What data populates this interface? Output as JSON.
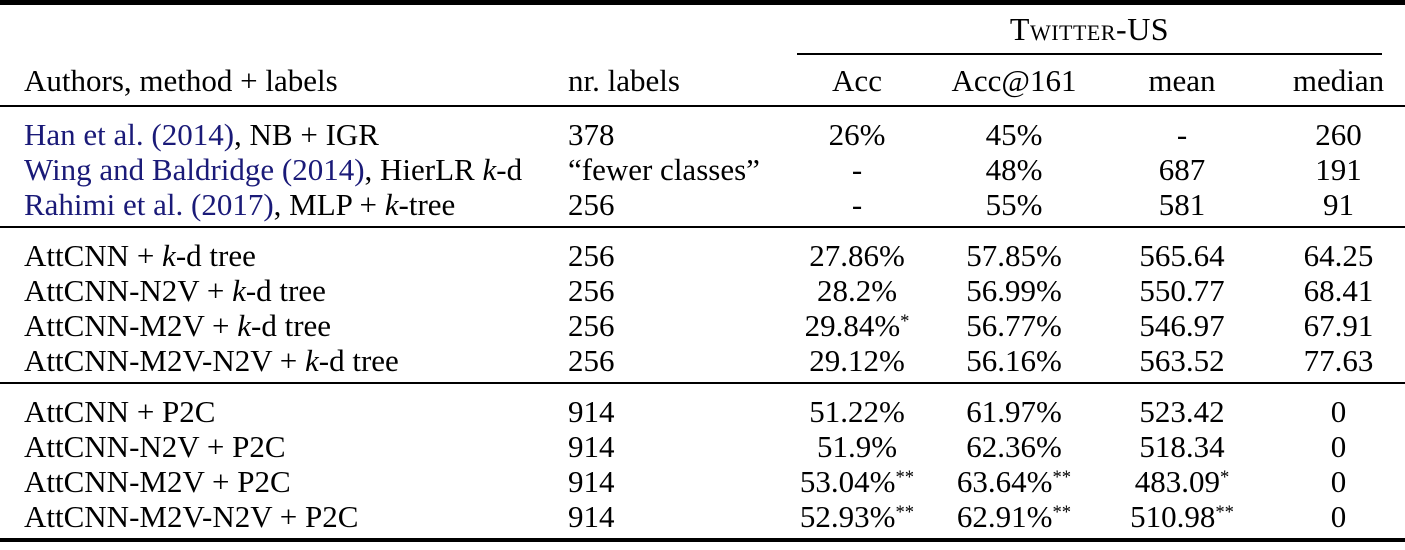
{
  "colors": {
    "citation_link": "#1a1a78",
    "text": "#000000",
    "background": "#ffffff"
  },
  "table": {
    "group_header": {
      "label": "Twitter-US"
    },
    "columns": {
      "method": "Authors, method + labels",
      "nr_labels": "nr. labels",
      "acc": "Acc",
      "acc161": "Acc@161",
      "mean": "mean",
      "median": "median"
    },
    "sections": [
      {
        "rows": [
          {
            "label": {
              "cite": "Han et al. (2014)",
              "pre": ", NB + IGR"
            },
            "nr_labels": "378",
            "acc": {
              "v": "26%"
            },
            "acc161": {
              "v": "45%"
            },
            "mean": {
              "v": "-"
            },
            "median": {
              "v": "260"
            }
          },
          {
            "label": {
              "cite": "Wing and Baldridge (2014)",
              "pre": ", HierLR ",
              "it": "k",
              "post": "-d"
            },
            "nr_labels": "“fewer classes”",
            "acc": {
              "v": "-"
            },
            "acc161": {
              "v": "48%"
            },
            "mean": {
              "v": "687"
            },
            "median": {
              "v": "191"
            }
          },
          {
            "label": {
              "cite": "Rahimi et al. (2017)",
              "pre": ", MLP + ",
              "it": "k",
              "post": "-tree"
            },
            "nr_labels": "256",
            "acc": {
              "v": "-"
            },
            "acc161": {
              "v": "55%"
            },
            "mean": {
              "v": "581"
            },
            "median": {
              "v": "91"
            }
          }
        ]
      },
      {
        "rows": [
          {
            "label": {
              "pre": "AttCNN + ",
              "it": "k",
              "post": "-d tree"
            },
            "nr_labels": "256",
            "acc": {
              "v": "27.86%"
            },
            "acc161": {
              "v": "57.85%"
            },
            "mean": {
              "v": "565.64"
            },
            "median": {
              "v": "64.25"
            }
          },
          {
            "label": {
              "pre": "AttCNN-N2V + ",
              "it": "k",
              "post": "-d tree"
            },
            "nr_labels": "256",
            "acc": {
              "v": "28.2%"
            },
            "acc161": {
              "v": "56.99%"
            },
            "mean": {
              "v": "550.77"
            },
            "median": {
              "v": "68.41"
            }
          },
          {
            "label": {
              "pre": "AttCNN-M2V + ",
              "it": "k",
              "post": "-d tree"
            },
            "nr_labels": "256",
            "acc": {
              "v": "29.84%",
              "s": "*"
            },
            "acc161": {
              "v": "56.77%"
            },
            "mean": {
              "v": "546.97"
            },
            "median": {
              "v": "67.91"
            }
          },
          {
            "label": {
              "pre": "AttCNN-M2V-N2V + ",
              "it": "k",
              "post": "-d tree"
            },
            "nr_labels": "256",
            "acc": {
              "v": "29.12%"
            },
            "acc161": {
              "v": "56.16%"
            },
            "mean": {
              "v": "563.52"
            },
            "median": {
              "v": "77.63"
            }
          }
        ]
      },
      {
        "rows": [
          {
            "label": {
              "pre": "AttCNN + P2C"
            },
            "nr_labels": "914",
            "acc": {
              "v": "51.22%"
            },
            "acc161": {
              "v": "61.97%"
            },
            "mean": {
              "v": "523.42"
            },
            "median": {
              "v": "0"
            }
          },
          {
            "label": {
              "pre": "AttCNN-N2V + P2C"
            },
            "nr_labels": "914",
            "acc": {
              "v": "51.9%"
            },
            "acc161": {
              "v": "62.36%"
            },
            "mean": {
              "v": "518.34"
            },
            "median": {
              "v": "0"
            }
          },
          {
            "label": {
              "pre": "AttCNN-M2V + P2C"
            },
            "nr_labels": "914",
            "acc": {
              "v": "53.04%",
              "s": "**"
            },
            "acc161": {
              "v": "63.64%",
              "s": "**"
            },
            "mean": {
              "v": "483.09",
              "s": "*"
            },
            "median": {
              "v": "0"
            }
          },
          {
            "label": {
              "pre": "AttCNN-M2V-N2V + P2C"
            },
            "nr_labels": "914",
            "acc": {
              "v": "52.93%",
              "s": "**"
            },
            "acc161": {
              "v": "62.91%",
              "s": "**"
            },
            "mean": {
              "v": "510.98",
              "s": "**"
            },
            "median": {
              "v": "0"
            }
          }
        ]
      }
    ]
  }
}
